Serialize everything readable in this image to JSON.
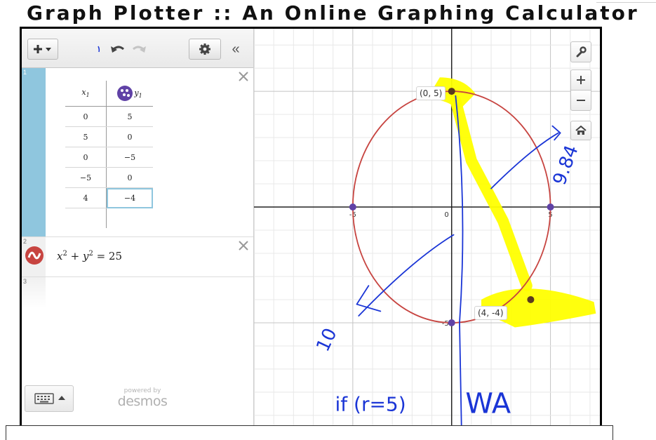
{
  "page": {
    "title": "Graph Plotter :: An Online Graphing Calculator"
  },
  "toolbar": {
    "add_label": "+",
    "collapse_label": "«"
  },
  "expressions": [
    {
      "index": "1",
      "type": "table",
      "headers": {
        "x": "x",
        "x_sub": "1",
        "y": "y",
        "y_sub": "1"
      },
      "rows": [
        [
          "0",
          "5"
        ],
        [
          "5",
          "0"
        ],
        [
          "0",
          "−5"
        ],
        [
          "−5",
          "0"
        ],
        [
          "4",
          "−4"
        ]
      ],
      "point_color": "#6042a6"
    },
    {
      "index": "2",
      "type": "equation",
      "latex_display": {
        "x": "x",
        "plus": " + ",
        "y": "y",
        "equals": " = 25",
        "exp": "2"
      },
      "color": "#c74440"
    },
    {
      "index": "3",
      "type": "empty"
    }
  ],
  "branding": {
    "powered_by": "powered by",
    "logo": "desmos"
  },
  "graph": {
    "x_range": [
      -10,
      7.5
    ],
    "y_range": [
      -9.7,
      7.7
    ],
    "tick_labels": {
      "x_neg": "-5",
      "x_pos": "5",
      "y_pos": "5",
      "y_neg": "-5",
      "origin": "0"
    },
    "point_labels": [
      "(0, 5)",
      "(4, -4)"
    ],
    "circle_color": "#c74440",
    "point_color": "#6042a6",
    "selected_point_color": "#5a3a1e",
    "highlight_color": "#ffff00",
    "ink_color": "#1a35d6",
    "annotations": {
      "distance": "9.84",
      "radius_mark": "10",
      "condition": "if (r=5)",
      "verdict": "WA"
    }
  },
  "icons": {
    "add": "plus-dropdown-icon",
    "undo": "undo-icon",
    "redo": "redo-icon",
    "settings": "gear-icon",
    "collapse": "double-chevron-left-icon",
    "wrench": "wrench-icon",
    "zoom_in": "zoom-in-icon",
    "zoom_out": "zoom-out-icon",
    "home": "home-icon",
    "keypad": "keyboard-icon"
  }
}
